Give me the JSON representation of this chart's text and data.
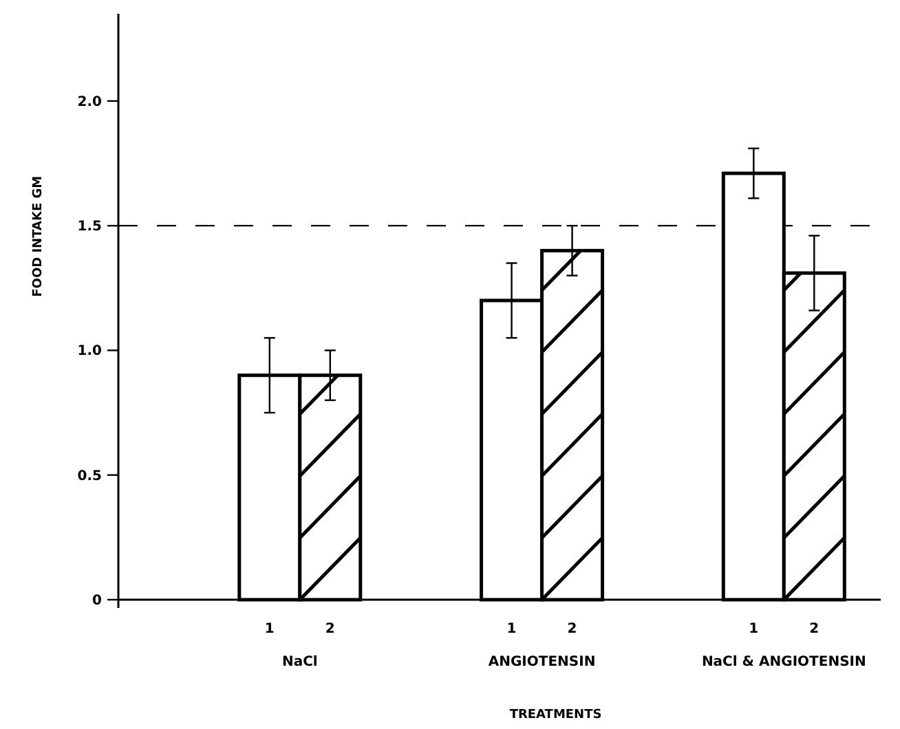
{
  "chart_data": {
    "type": "bar",
    "xlabel": "TREATMENTS",
    "ylabel": "FOOD INTAKE GM",
    "categories": [
      "NaCl",
      "ANGIOTENSIN",
      "NaCl & ANGIOTENSIN"
    ],
    "series": [
      {
        "name": "1",
        "color": "#ffffff",
        "values": [
          0.9,
          1.2,
          1.71
        ],
        "errors": [
          [
            0.75,
            1.05
          ],
          [
            1.05,
            1.35
          ],
          [
            1.61,
            1.81
          ]
        ]
      },
      {
        "name": "2",
        "color": "#ffffff",
        "values": [
          0.9,
          1.4,
          1.31
        ],
        "errors": [
          [
            0.8,
            1.0
          ],
          [
            1.3,
            1.5
          ],
          [
            1.16,
            1.46
          ]
        ]
      }
    ],
    "ylim": [
      0,
      2.35
    ],
    "yticks": [
      0,
      0.5,
      {
        "value": 1.0,
        "label": "1.0"
      },
      1.5,
      {
        "value": 2.0,
        "label": "2.0"
      }
    ],
    "ref_lines": [
      {
        "axis": "y",
        "value": 1.5,
        "line_style": "dashed"
      }
    ],
    "grid": false
  }
}
